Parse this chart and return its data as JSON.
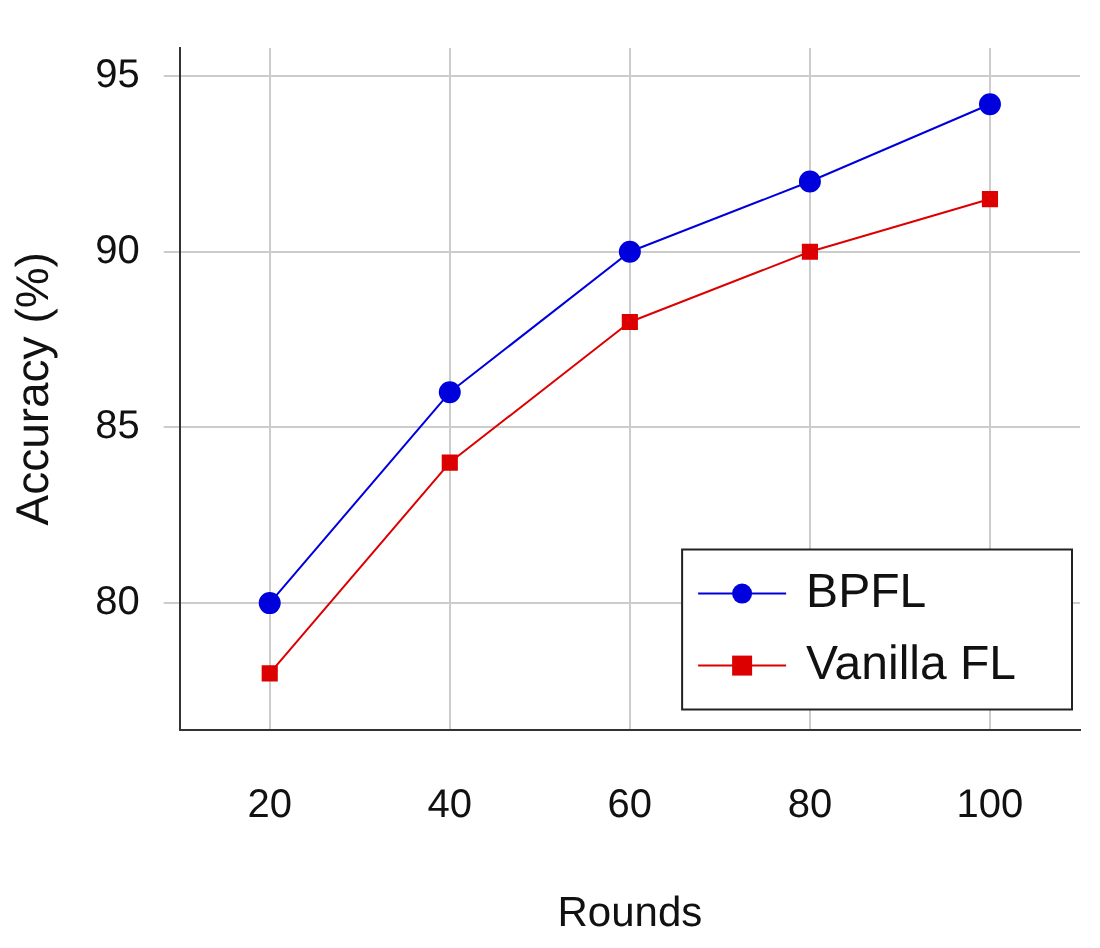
{
  "chart_data": {
    "type": "line",
    "xlabel": "Rounds",
    "ylabel": "Accuracy (%)",
    "categories": [
      "20",
      "40",
      "60",
      "80",
      "100"
    ],
    "series": [
      {
        "name": "BPFL",
        "color": "#0000dd",
        "marker": "circle",
        "values": [
          80.0,
          86.0,
          90.0,
          92.0,
          94.2
        ]
      },
      {
        "name": "Vanilla FL",
        "color": "#dd0000",
        "marker": "square",
        "values": [
          78.0,
          84.0,
          88.0,
          90.0,
          91.5
        ]
      }
    ],
    "ylim": [
      76.4,
      95.8
    ],
    "yticks": [
      80,
      85,
      90,
      95
    ],
    "grid": true,
    "legend": "bottom right",
    "line_style": "solid"
  }
}
